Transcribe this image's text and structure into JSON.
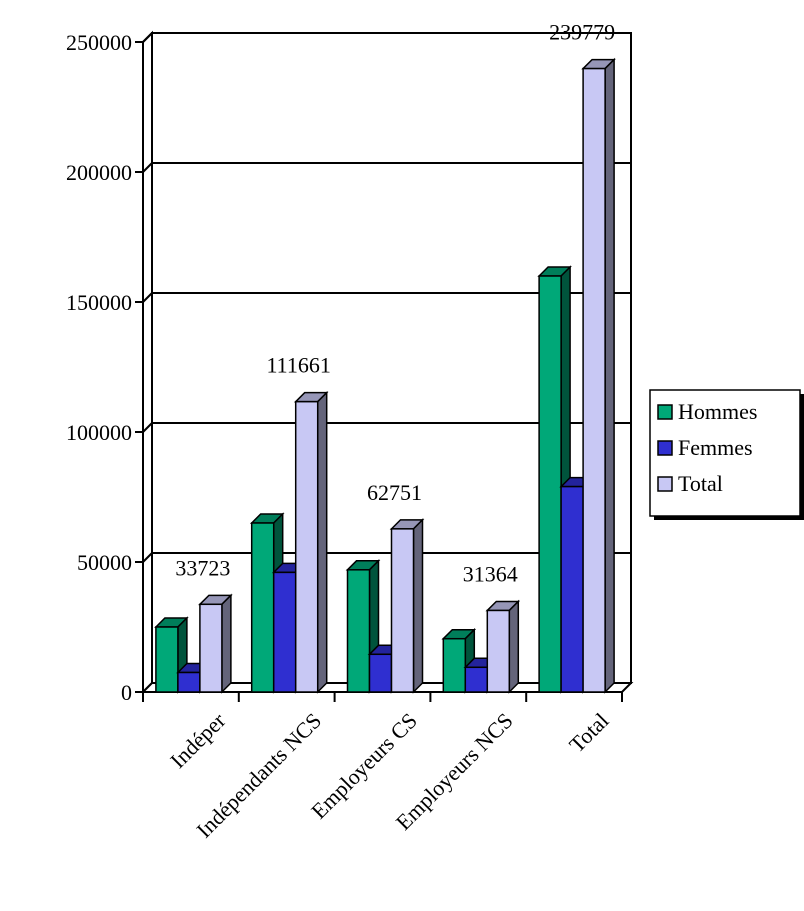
{
  "chart_data": {
    "type": "bar",
    "style": "3d-clustered-column",
    "categories": [
      "Indéper",
      "Indépendants NCS",
      "Employeurs CS",
      "Employeurs NCS",
      "Total"
    ],
    "series": [
      {
        "name": "Hommes",
        "values": [
          25000,
          65000,
          47000,
          20500,
          160000
        ],
        "color": "#00a878"
      },
      {
        "name": "Femmes",
        "values": [
          7500,
          46000,
          14500,
          9500,
          79000
        ],
        "color": "#2f2fd0"
      },
      {
        "name": "Total",
        "values": [
          33723,
          111661,
          62751,
          31364,
          239779
        ],
        "color": "#c8c8f4"
      }
    ],
    "data_labels": [
      "33723",
      "111661",
      "62751",
      "31364",
      "239779"
    ],
    "yticks": [
      "0",
      "50000",
      "100000",
      "150000",
      "200000",
      "250000"
    ],
    "ylim": [
      0,
      250000
    ],
    "grid": true,
    "legend_position": "right"
  }
}
